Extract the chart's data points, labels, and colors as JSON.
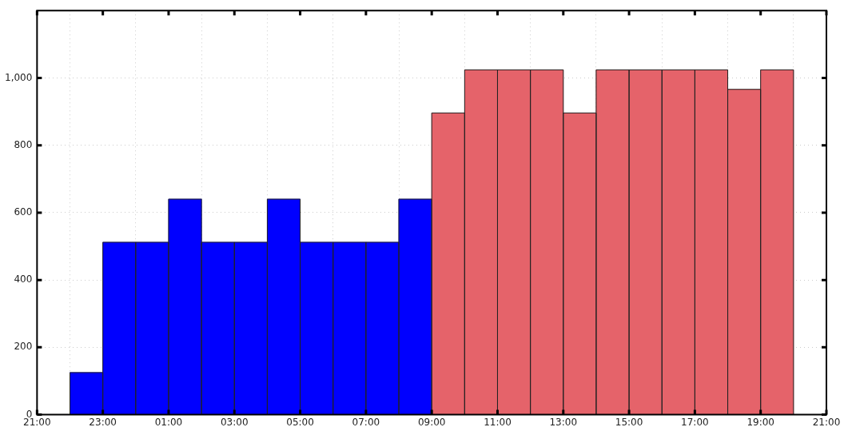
{
  "chart_data": {
    "type": "histogram",
    "bins": [
      "2000-01-01T22:00",
      "2000-01-01T23:00",
      "2000-01-02T00:00",
      "2000-01-02T01:00",
      "2000-01-02T02:00",
      "2000-01-02T03:00",
      "2000-01-02T04:00",
      "2000-01-02T05:00",
      "2000-01-02T06:00",
      "2000-01-02T07:00",
      "2000-01-02T08:00",
      "2000-01-02T09:00",
      "2000-01-02T10:00",
      "2000-01-02T11:00",
      "2000-01-02T12:00",
      "2000-01-02T13:00",
      "2000-01-02T14:00",
      "2000-01-02T15:00",
      "2000-01-02T16:00",
      "2000-01-02T17:00",
      "2000-01-02T18:00",
      "2000-01-02T19:00",
      "2000-01-02T20:00"
    ],
    "values": [
      125,
      512,
      512,
      640,
      512,
      512,
      640,
      512,
      512,
      512,
      640,
      896,
      1024,
      1024,
      1024,
      896,
      1024,
      1024,
      1024,
      1024,
      966,
      1024
    ],
    "colors": [
      "#0000ff",
      "#0000ff",
      "#0000ff",
      "#0000ff",
      "#0000ff",
      "#0000ff",
      "#0000ff",
      "#0000ff",
      "#0000ff",
      "#0000ff",
      "#0000ff",
      "#e5636a",
      "#e5636a",
      "#e5636a",
      "#e5636a",
      "#e5636a",
      "#e5636a",
      "#e5636a",
      "#e5636a",
      "#e5636a",
      "#e5636a",
      "#e5636a"
    ],
    "xlim": [
      "2000-01-01T21:00",
      "2000-01-02T21:00"
    ],
    "xticks": [
      {
        "value": "2000-01-01T21:00",
        "label": "21:00"
      },
      {
        "value": "2000-01-01T23:00",
        "label": "23:00"
      },
      {
        "value": "2000-01-02T01:00",
        "label": "01:00"
      },
      {
        "value": "2000-01-02T03:00",
        "label": "03:00"
      },
      {
        "value": "2000-01-02T05:00",
        "label": "05:00"
      },
      {
        "value": "2000-01-02T07:00",
        "label": "07:00"
      },
      {
        "value": "2000-01-02T09:00",
        "label": "09:00"
      },
      {
        "value": "2000-01-02T11:00",
        "label": "11:00"
      },
      {
        "value": "2000-01-02T13:00",
        "label": "13:00"
      },
      {
        "value": "2000-01-02T15:00",
        "label": "15:00"
      },
      {
        "value": "2000-01-02T17:00",
        "label": "17:00"
      },
      {
        "value": "2000-01-02T19:00",
        "label": "19:00"
      },
      {
        "value": "2000-01-02T21:00",
        "label": "21:00"
      }
    ],
    "ylim": [
      0,
      1200
    ],
    "yticks": [
      0,
      200,
      400,
      600,
      800,
      {
        "value": 1000,
        "label": "1,000"
      }
    ],
    "grid": true
  }
}
